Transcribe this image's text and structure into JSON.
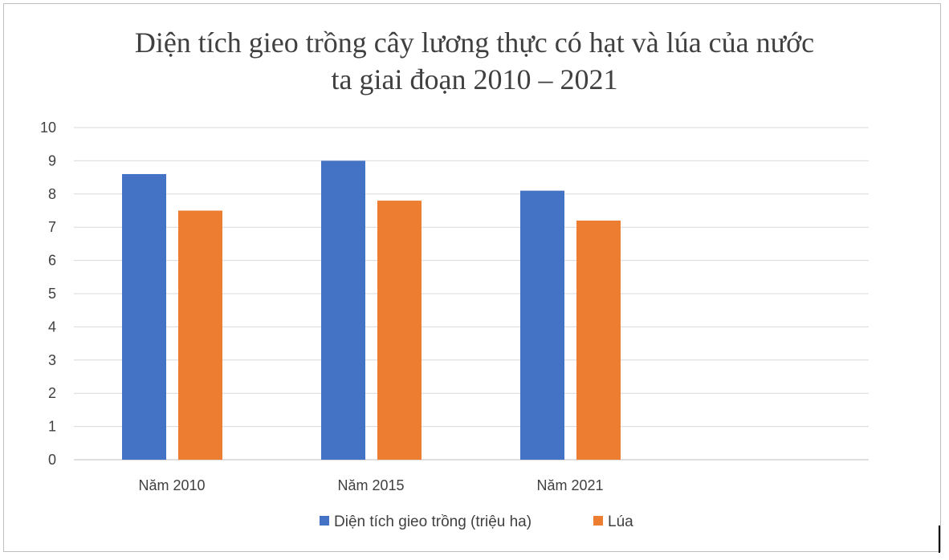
{
  "chart_data": {
    "type": "bar",
    "title_lines": [
      "Diện tích gieo trồng cây lương thực có hạt và lúa của nước",
      "ta giai đoạn 2010 – 2021"
    ],
    "categories": [
      "Năm 2010",
      "Năm 2015",
      "Năm 2021"
    ],
    "series": [
      {
        "name": "Diện tích gieo trồng (triệu ha)",
        "color": "#4472C4",
        "values": [
          8.6,
          9.0,
          8.1
        ]
      },
      {
        "name": "Lúa",
        "color": "#ED7D31",
        "values": [
          7.5,
          7.8,
          7.2
        ]
      }
    ],
    "yticks": [
      "0",
      "1",
      "2",
      "3",
      "4",
      "5",
      "6",
      "7",
      "8",
      "9",
      "10"
    ],
    "ylim": [
      0,
      10
    ],
    "xlabel": "",
    "ylabel": "",
    "grid": true,
    "legend_position": "bottom"
  }
}
